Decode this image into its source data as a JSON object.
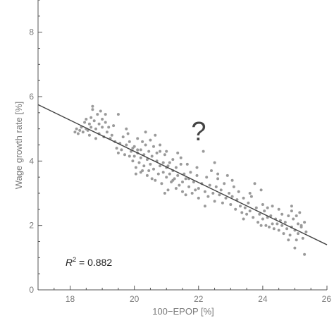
{
  "chart_data": {
    "type": "scatter",
    "xlabel": "100−EPOP [%]",
    "ylabel": "Wage growth rate [%]",
    "xlim": [
      17,
      26
    ],
    "ylim": [
      0,
      9
    ],
    "x_ticks": [
      18,
      20,
      22,
      24,
      26
    ],
    "y_ticks": [
      0,
      2,
      4,
      6,
      8
    ],
    "grid": false,
    "legend": "none",
    "annotations": {
      "r2_label": "R",
      "r2_sup": "2",
      "r2_value": " = 0.882",
      "question": "?"
    },
    "fit_line": {
      "x": [
        17,
        26
      ],
      "y": [
        5.75,
        1.4
      ]
    },
    "colors": {
      "points": "#9a9a9a",
      "line": "#444444",
      "axis": "#555555"
    },
    "points": [
      [
        18.15,
        4.9
      ],
      [
        18.2,
        5.0
      ],
      [
        18.25,
        4.85
      ],
      [
        18.3,
        4.95
      ],
      [
        18.35,
        5.05
      ],
      [
        18.4,
        4.9
      ],
      [
        18.45,
        5.2
      ],
      [
        18.5,
        5.3
      ],
      [
        18.5,
        5.0
      ],
      [
        18.55,
        4.95
      ],
      [
        18.6,
        5.15
      ],
      [
        18.6,
        4.8
      ],
      [
        18.65,
        5.35
      ],
      [
        18.65,
        5.05
      ],
      [
        18.7,
        5.7
      ],
      [
        18.7,
        5.6
      ],
      [
        18.75,
        5.25
      ],
      [
        18.8,
        5.0
      ],
      [
        18.8,
        4.7
      ],
      [
        18.85,
        5.45
      ],
      [
        18.9,
        5.15
      ],
      [
        18.9,
        4.85
      ],
      [
        18.95,
        5.55
      ],
      [
        19.0,
        5.3
      ],
      [
        19.0,
        5.05
      ],
      [
        19.05,
        4.75
      ],
      [
        19.1,
        5.2
      ],
      [
        19.1,
        5.45
      ],
      [
        19.15,
        4.9
      ],
      [
        19.2,
        5.05
      ],
      [
        19.25,
        4.7
      ],
      [
        19.3,
        4.8
      ],
      [
        19.35,
        5.1
      ],
      [
        19.4,
        4.6
      ],
      [
        19.45,
        4.4
      ],
      [
        19.5,
        4.25
      ],
      [
        19.5,
        5.45
      ],
      [
        19.55,
        4.55
      ],
      [
        19.6,
        4.35
      ],
      [
        19.65,
        4.75
      ],
      [
        19.7,
        4.2
      ],
      [
        19.75,
        4.5
      ],
      [
        19.8,
        4.85
      ],
      [
        19.85,
        4.6
      ],
      [
        19.9,
        4.3
      ],
      [
        19.95,
        4.0
      ],
      [
        20.0,
        4.15
      ],
      [
        20.0,
        4.45
      ],
      [
        20.05,
        3.8
      ],
      [
        20.05,
        3.6
      ],
      [
        20.1,
        4.7
      ],
      [
        20.1,
        4.25
      ],
      [
        20.15,
        3.95
      ],
      [
        20.2,
        4.35
      ],
      [
        20.2,
        4.1
      ],
      [
        20.25,
        3.7
      ],
      [
        20.25,
        4.6
      ],
      [
        20.3,
        4.2
      ],
      [
        20.3,
        3.85
      ],
      [
        20.35,
        4.9
      ],
      [
        20.35,
        4.5
      ],
      [
        20.4,
        4.05
      ],
      [
        20.4,
        3.55
      ],
      [
        20.45,
        4.3
      ],
      [
        20.5,
        3.9
      ],
      [
        20.5,
        4.65
      ],
      [
        20.55,
        4.15
      ],
      [
        20.6,
        3.75
      ],
      [
        20.6,
        4.45
      ],
      [
        20.65,
        3.4
      ],
      [
        20.7,
        4.0
      ],
      [
        20.7,
        4.25
      ],
      [
        20.75,
        3.6
      ],
      [
        20.8,
        3.85
      ],
      [
        20.8,
        4.5
      ],
      [
        20.85,
        3.3
      ],
      [
        20.9,
        3.95
      ],
      [
        20.9,
        3.65
      ],
      [
        20.95,
        4.2
      ],
      [
        21.0,
        3.5
      ],
      [
        21.0,
        3.8
      ],
      [
        21.0,
        4.3
      ],
      [
        21.05,
        3.1
      ],
      [
        21.1,
        3.6
      ],
      [
        21.1,
        3.95
      ],
      [
        21.15,
        3.35
      ],
      [
        21.2,
        3.7
      ],
      [
        21.2,
        4.05
      ],
      [
        21.25,
        3.45
      ],
      [
        21.3,
        3.15
      ],
      [
        21.3,
        3.8
      ],
      [
        21.35,
        3.55
      ],
      [
        21.4,
        3.25
      ],
      [
        21.45,
        3.9
      ],
      [
        21.5,
        3.35
      ],
      [
        21.5,
        3.05
      ],
      [
        21.55,
        3.6
      ],
      [
        21.6,
        2.95
      ],
      [
        21.6,
        3.45
      ],
      [
        21.7,
        3.2
      ],
      [
        21.75,
        3.65
      ],
      [
        21.8,
        3.0
      ],
      [
        21.85,
        3.35
      ],
      [
        21.9,
        3.1
      ],
      [
        21.95,
        3.55
      ],
      [
        22.0,
        3.15
      ],
      [
        22.0,
        2.85
      ],
      [
        22.1,
        3.3
      ],
      [
        22.15,
        4.3
      ],
      [
        22.2,
        3.05
      ],
      [
        22.25,
        3.5
      ],
      [
        22.3,
        2.9
      ],
      [
        22.35,
        3.25
      ],
      [
        22.4,
        3.7
      ],
      [
        22.45,
        3.0
      ],
      [
        22.5,
        2.75
      ],
      [
        22.55,
        3.2
      ],
      [
        22.6,
        3.45
      ],
      [
        22.65,
        2.95
      ],
      [
        22.7,
        3.1
      ],
      [
        22.75,
        2.7
      ],
      [
        22.8,
        3.3
      ],
      [
        22.85,
        2.85
      ],
      [
        22.9,
        3.55
      ],
      [
        22.95,
        3.0
      ],
      [
        23.0,
        2.65
      ],
      [
        23.05,
        2.9
      ],
      [
        23.1,
        3.2
      ],
      [
        23.15,
        2.5
      ],
      [
        23.2,
        2.8
      ],
      [
        23.25,
        3.05
      ],
      [
        23.3,
        2.6
      ],
      [
        23.35,
        2.4
      ],
      [
        23.4,
        2.85
      ],
      [
        23.45,
        2.55
      ],
      [
        23.5,
        2.35
      ],
      [
        23.55,
        2.7
      ],
      [
        23.6,
        2.45
      ],
      [
        23.65,
        2.9
      ],
      [
        23.7,
        2.25
      ],
      [
        23.75,
        3.3
      ],
      [
        23.8,
        2.55
      ],
      [
        23.85,
        2.1
      ],
      [
        23.9,
        2.35
      ],
      [
        23.95,
        2.0
      ],
      [
        24.0,
        2.65
      ],
      [
        24.0,
        2.2
      ],
      [
        24.05,
        2.45
      ],
      [
        24.1,
        2.0
      ],
      [
        24.15,
        2.55
      ],
      [
        24.2,
        1.95
      ],
      [
        24.25,
        2.3
      ],
      [
        24.3,
        2.05
      ],
      [
        24.35,
        1.9
      ],
      [
        24.4,
        2.2
      ],
      [
        24.45,
        2.05
      ],
      [
        24.5,
        1.85
      ],
      [
        24.55,
        2.15
      ],
      [
        24.6,
        2.0
      ],
      [
        24.65,
        1.75
      ],
      [
        24.7,
        2.1
      ],
      [
        24.75,
        1.9
      ],
      [
        24.8,
        2.3
      ],
      [
        24.85,
        1.7
      ],
      [
        24.9,
        2.45
      ],
      [
        24.9,
        1.95
      ],
      [
        24.95,
        2.2
      ],
      [
        25.0,
        1.85
      ],
      [
        25.0,
        1.3
      ],
      [
        25.05,
        2.3
      ],
      [
        25.05,
        1.55
      ],
      [
        25.1,
        2.05
      ],
      [
        25.1,
        1.75
      ],
      [
        25.15,
        2.4
      ],
      [
        25.2,
        1.95
      ],
      [
        25.25,
        1.6
      ],
      [
        25.3,
        1.1
      ],
      [
        25.3,
        2.1
      ],
      [
        25.35,
        1.8
      ],
      [
        25.2,
        2.0
      ],
      [
        24.9,
        2.6
      ],
      [
        24.8,
        1.55
      ],
      [
        24.6,
        2.35
      ],
      [
        24.3,
        2.6
      ],
      [
        24.15,
        2.25
      ],
      [
        23.95,
        3.1
      ],
      [
        23.4,
        2.2
      ],
      [
        23.05,
        3.4
      ],
      [
        22.6,
        3.6
      ],
      [
        22.2,
        2.6
      ],
      [
        21.95,
        3.8
      ],
      [
        21.65,
        3.9
      ],
      [
        21.45,
        4.1
      ],
      [
        21.2,
        3.4
      ],
      [
        20.95,
        3.0
      ],
      [
        20.65,
        4.8
      ],
      [
        20.45,
        3.7
      ],
      [
        20.2,
        3.65
      ],
      [
        19.95,
        4.4
      ],
      [
        19.75,
        5.0
      ],
      [
        20.8,
        4.3
      ],
      [
        21.35,
        4.25
      ],
      [
        20.1,
        4.35
      ],
      [
        19.85,
        4.15
      ],
      [
        20.55,
        3.45
      ],
      [
        21.05,
        3.85
      ],
      [
        21.7,
        3.45
      ],
      [
        22.5,
        3.95
      ],
      [
        23.6,
        3.0
      ],
      [
        24.5,
        2.5
      ]
    ]
  }
}
